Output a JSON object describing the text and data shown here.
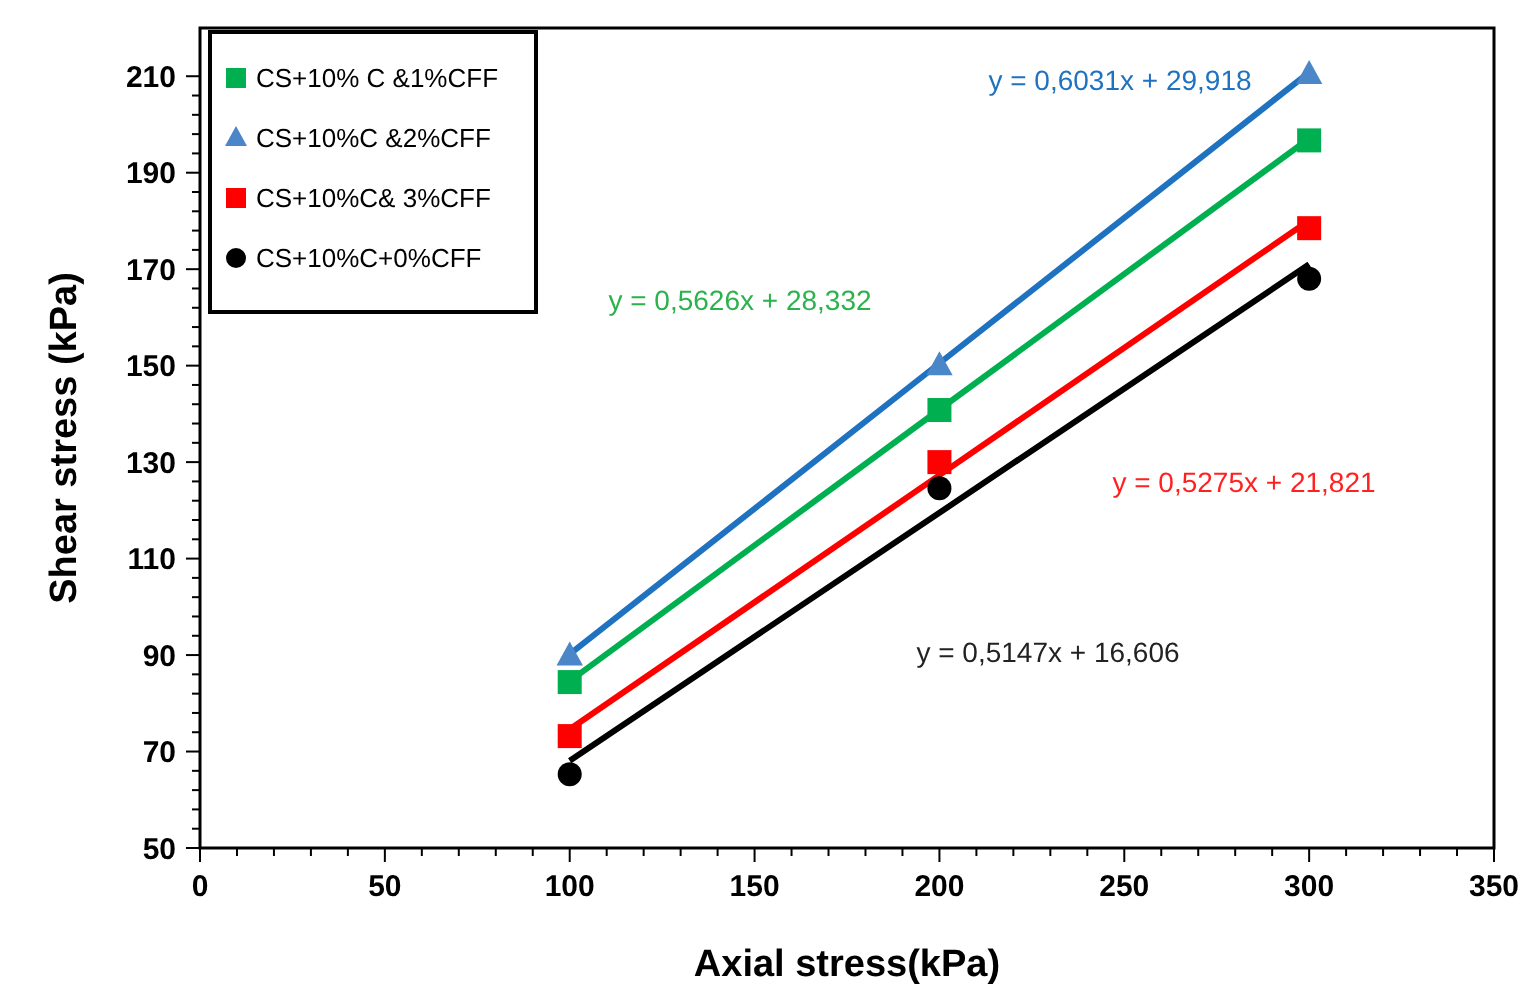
{
  "chart_data": {
    "type": "scatter",
    "xlabel": "Axial stress(kPa)",
    "ylabel": "Shear stress (kPa)",
    "x": [
      100,
      200,
      300
    ],
    "xlim": [
      0,
      350
    ],
    "xticks": [
      0,
      50,
      100,
      150,
      200,
      250,
      300,
      350
    ],
    "ylim": [
      50,
      220
    ],
    "yticks": [
      50,
      70,
      90,
      110,
      130,
      150,
      170,
      190,
      210
    ],
    "grid": false,
    "legend": "top left",
    "series": [
      {
        "name": "CS+10% C &1%CFF",
        "color": "#00b050",
        "marker": "square",
        "values": [
          84.4,
          140.8,
          196.7
        ]
      },
      {
        "name": "CS+10%C &2%CFF",
        "color": "#4a86c8",
        "marker": "triangle",
        "values": [
          89.8,
          150,
          210.4
        ]
      },
      {
        "name": "CS+10%C& 3%CFF",
        "color": "#ff0000",
        "marker": "square",
        "values": [
          73.2,
          130,
          178.5
        ]
      },
      {
        "name": "CS+10%C+0%CFF",
        "color": "#000000",
        "marker": "circle",
        "values": [
          65.3,
          124.6,
          168
        ]
      },
      {
        "type": "line",
        "color": "#00b050",
        "values": [
          84.6,
          140.9,
          197.1
        ]
      },
      {
        "type": "line",
        "color": "#1f72c0",
        "values": [
          90.2,
          150.5,
          210.8
        ]
      },
      {
        "type": "line",
        "color": "#ff0000",
        "values": [
          74.6,
          127.3,
          180.1
        ]
      },
      {
        "type": "line",
        "color": "#000000",
        "values": [
          68.1,
          119.5,
          171
        ]
      }
    ],
    "annotations": [
      "y = 0,5626x + 28,332",
      "y = 0,6031x + 29,918",
      "y = 0,5275x + 21,821",
      "y = 0,5147x + 16,606"
    ]
  }
}
